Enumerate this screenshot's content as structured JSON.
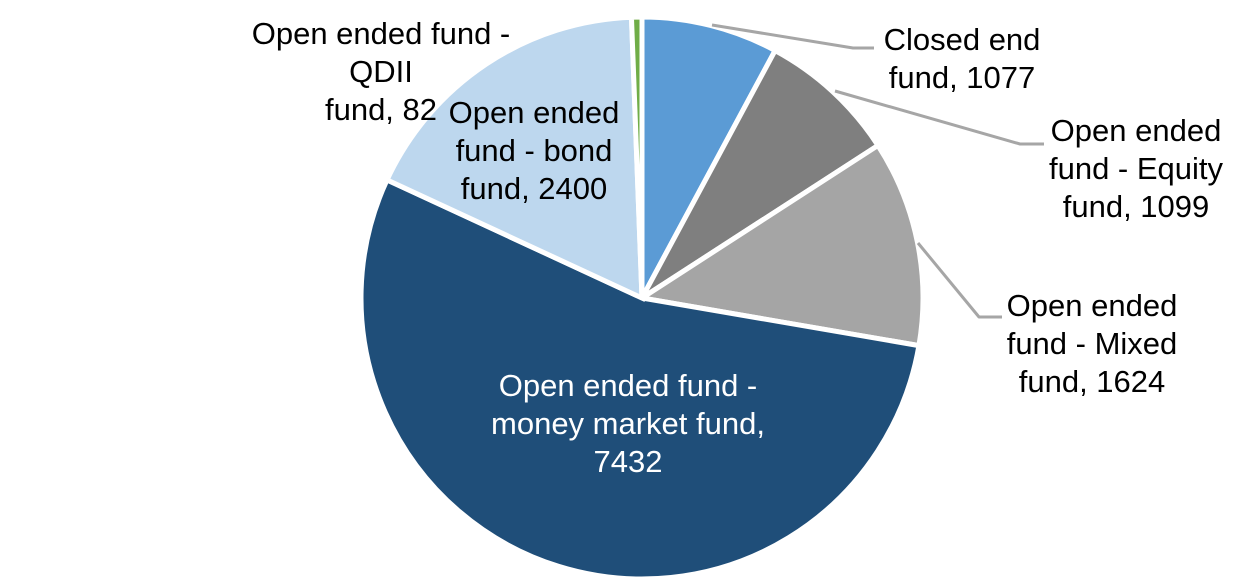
{
  "chart_data": {
    "type": "pie",
    "title": "",
    "total": 13714,
    "direction": "clockwise",
    "start_angle_deg": 0,
    "legend": "none",
    "data_labels": "category_and_value",
    "background_color": "#FFFFFF",
    "slice_gap_color": "#FFFFFF",
    "leader_line_color": "#A6A6A6",
    "slices": [
      {
        "label": "Closed end fund",
        "value": 1077,
        "color": "#5B9BD5"
      },
      {
        "label": "Open ended fund - Equity fund",
        "value": 1099,
        "color": "#7F7F7F"
      },
      {
        "label": "Open ended fund - Mixed fund",
        "value": 1624,
        "color": "#A5A5A5"
      },
      {
        "label": "Open ended fund - money market fund",
        "value": 7432,
        "color": "#1F4E79"
      },
      {
        "label": "Open ended fund - bond fund",
        "value": 2400,
        "color": "#BDD7EE"
      },
      {
        "label": "Open ended fund - QDII fund",
        "value": 82,
        "color": "#70AD47"
      }
    ]
  },
  "labels": {
    "closed_end": "Closed end\nfund, 1077",
    "equity": "Open ended\nfund - Equity\nfund, 1099",
    "mixed": "Open ended\nfund - Mixed\nfund, 1624",
    "money_market": "Open ended fund -\nmoney market fund,\n7432",
    "bond": "Open ended\nfund - bond\nfund, 2400",
    "qdii": "Open ended fund - QDII\nfund, 82"
  }
}
